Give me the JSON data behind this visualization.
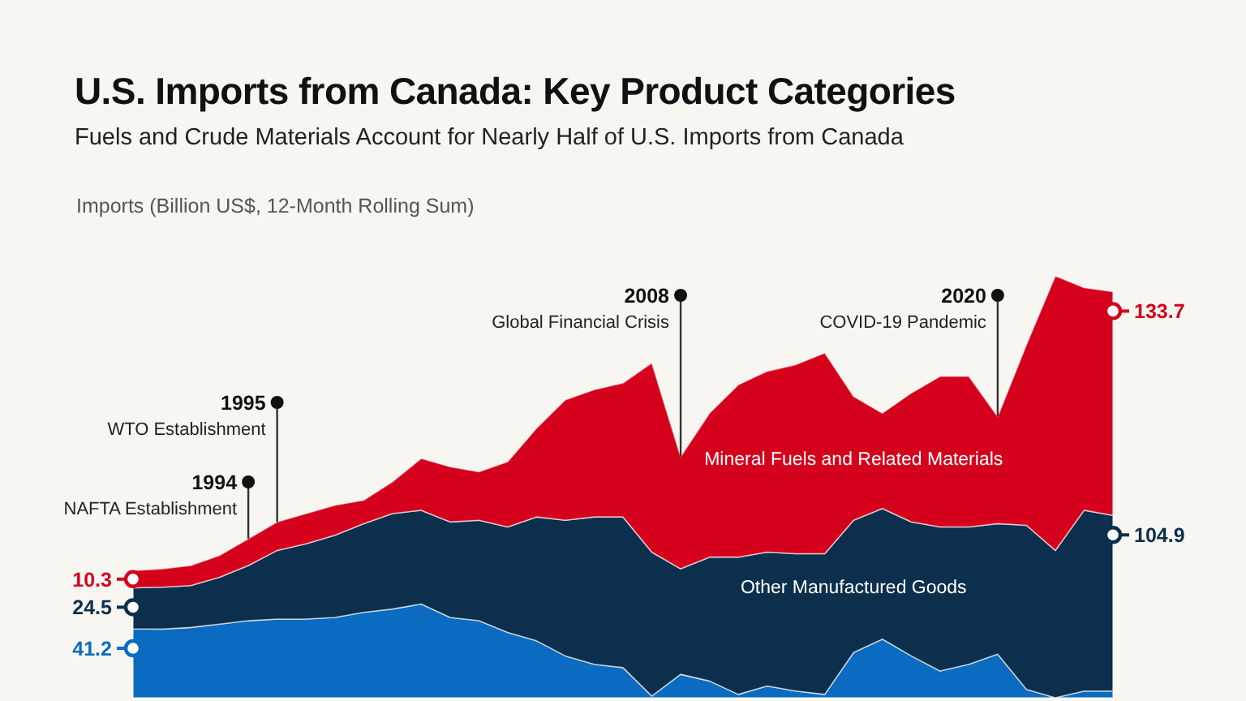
{
  "chart_data": {
    "type": "area",
    "stacked": true,
    "title": "U.S. Imports from Canada: Key Product Categories",
    "subtitle": "Fuels and Crude Materials Account for Nearly Half of U.S. Imports from Canada",
    "ylabel": "Imports (Billion US$, 12-Month Rolling Sum)",
    "categories": [
      null,
      null,
      null,
      null,
      null,
      null,
      null,
      null,
      null,
      null,
      null,
      null,
      null,
      null,
      null,
      null,
      null,
      null,
      null,
      null,
      null,
      null,
      null,
      null,
      null,
      null,
      null,
      null,
      null,
      null,
      null,
      null,
      null,
      null,
      null
    ],
    "legend": false,
    "series": [
      {
        "color": "#0a6bc0",
        "values": [
          41.2,
          41,
          42,
          44,
          46,
          47,
          47,
          48,
          51,
          53,
          56,
          48,
          46,
          39,
          34,
          25,
          20,
          18,
          1,
          14,
          10,
          2,
          7,
          4,
          2,
          27,
          35,
          25,
          16,
          20,
          26,
          5,
          0,
          4,
          4
        ],
        "value_labels": [
          "41.2",
          null,
          null,
          null,
          null,
          null,
          null,
          null,
          null,
          null,
          null,
          null,
          null,
          null,
          null,
          null,
          null,
          null,
          null,
          null,
          null,
          null,
          null,
          null,
          null,
          null,
          null,
          null,
          null,
          null,
          null,
          null,
          null,
          null,
          null
        ]
      },
      {
        "name": "Other Manufactured Goods",
        "color": "#0b2f4d",
        "values": [
          24.5,
          25,
          25,
          28,
          33,
          41,
          45,
          49,
          53,
          57,
          56,
          57,
          60,
          63,
          74,
          81,
          88,
          90,
          86,
          63,
          74,
          82,
          80,
          82,
          84,
          79,
          78,
          80,
          86,
          82,
          78,
          98,
          88,
          108,
          104.9
        ],
        "value_labels": [
          "24.5",
          null,
          null,
          null,
          null,
          null,
          null,
          null,
          null,
          null,
          null,
          null,
          null,
          null,
          null,
          null,
          null,
          null,
          null,
          null,
          null,
          null,
          null,
          null,
          null,
          null,
          null,
          null,
          null,
          null,
          null,
          null,
          null,
          null,
          "104.9"
        ]
      },
      {
        "name": "Mineral Fuels and Related Materials",
        "color": "#d5001c",
        "values": [
          10.3,
          11,
          12,
          13,
          16,
          17,
          18,
          18,
          14,
          19,
          31,
          33,
          29,
          39,
          53,
          72,
          76,
          80,
          113,
          67,
          86,
          103,
          108,
          113,
          120,
          74,
          57,
          77,
          90,
          90,
          64,
          108,
          164,
          133,
          133.7
        ],
        "value_labels": [
          "10.3",
          null,
          null,
          null,
          null,
          null,
          null,
          null,
          null,
          null,
          null,
          null,
          null,
          null,
          null,
          null,
          null,
          null,
          null,
          null,
          null,
          null,
          null,
          null,
          null,
          null,
          null,
          null,
          null,
          null,
          null,
          null,
          null,
          null,
          "133.7"
        ]
      }
    ],
    "annotations": [
      "1994\nNAFTA Establishment",
      "1995\nWTO Establishment",
      "2008\nGlobal Financial Crisis",
      "2020\nCOVID-19 Pandemic"
    ]
  }
}
